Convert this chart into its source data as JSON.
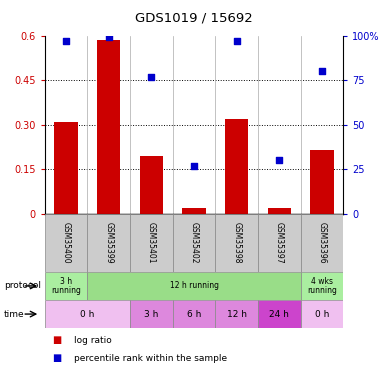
{
  "title": "GDS1019 / 15692",
  "samples": [
    "GSM35400",
    "GSM35399",
    "GSM35401",
    "GSM35402",
    "GSM35398",
    "GSM35397",
    "GSM35396"
  ],
  "log_ratio": [
    0.31,
    0.585,
    0.195,
    0.02,
    0.32,
    0.02,
    0.215
  ],
  "percentile_rank": [
    97,
    99,
    77,
    27,
    97,
    30,
    80
  ],
  "ylim_left": [
    0,
    0.6
  ],
  "ylim_right": [
    0,
    100
  ],
  "yticks_left": [
    0,
    0.15,
    0.3,
    0.45,
    0.6
  ],
  "ytick_labels_left": [
    "0",
    "0.15",
    "0.30",
    "0.45",
    "0.6"
  ],
  "yticks_right": [
    0,
    25,
    50,
    75,
    100
  ],
  "ytick_labels_right": [
    "0",
    "25",
    "50",
    "75",
    "100%"
  ],
  "bar_color": "#cc0000",
  "dot_color": "#0000cc",
  "protocol_row": [
    {
      "label": "3 h\nrunning",
      "start": 0,
      "end": 1,
      "color": "#aaeea0"
    },
    {
      "label": "12 h running",
      "start": 1,
      "end": 6,
      "color": "#99dd88"
    },
    {
      "label": "4 wks\nrunning",
      "start": 6,
      "end": 7,
      "color": "#aaeea0"
    }
  ],
  "time_row": [
    {
      "label": "0 h",
      "start": 0,
      "end": 2,
      "color": "#f0c0f0"
    },
    {
      "label": "3 h",
      "start": 2,
      "end": 3,
      "color": "#dd88dd"
    },
    {
      "label": "6 h",
      "start": 3,
      "end": 4,
      "color": "#dd88dd"
    },
    {
      "label": "12 h",
      "start": 4,
      "end": 5,
      "color": "#dd88dd"
    },
    {
      "label": "24 h",
      "start": 5,
      "end": 6,
      "color": "#cc44cc"
    },
    {
      "label": "0 h",
      "start": 6,
      "end": 7,
      "color": "#f0c0f0"
    }
  ],
  "legend_items": [
    {
      "label": "log ratio",
      "color": "#cc0000"
    },
    {
      "label": "percentile rank within the sample",
      "color": "#0000cc"
    }
  ],
  "bg": "#ffffff"
}
